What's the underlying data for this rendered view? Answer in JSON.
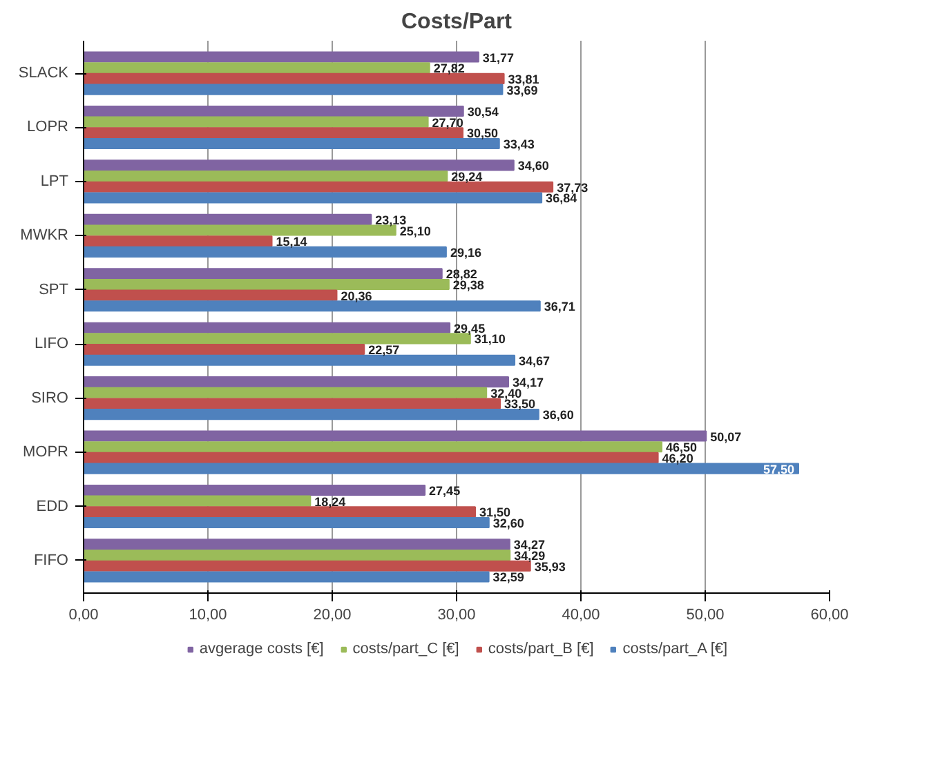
{
  "chart_data": {
    "type": "bar",
    "orientation": "horizontal",
    "title": "Costs/Part",
    "categories": [
      "SLACK",
      "LOPR",
      "LPT",
      "MWKR",
      "SPT",
      "LIFO",
      "SIRO",
      "MOPR",
      "EDD",
      "FIFO"
    ],
    "series": [
      {
        "name": "avgerage costs [€]",
        "color": "#8064a2",
        "values": [
          31.77,
          30.54,
          34.6,
          23.13,
          28.82,
          29.45,
          34.17,
          50.07,
          27.45,
          34.27
        ],
        "value_labels": [
          "31,77",
          "30,54",
          "34,60",
          "23,13",
          "28,82",
          "29,45",
          "34,17",
          "50,07",
          "27,45",
          "34,27"
        ]
      },
      {
        "name": "costs/part_C [€]",
        "color": "#9bbb59",
        "values": [
          27.82,
          27.7,
          29.24,
          25.1,
          29.38,
          31.1,
          32.4,
          46.5,
          18.24,
          34.29
        ],
        "value_labels": [
          "27,82",
          "27,70",
          "29,24",
          "25,10",
          "29,38",
          "31,10",
          "32,40",
          "46,50",
          "18,24",
          "34,29"
        ]
      },
      {
        "name": "costs/part_B [€]",
        "color": "#c0504d",
        "values": [
          33.81,
          30.5,
          37.73,
          15.14,
          20.36,
          22.57,
          33.5,
          46.2,
          31.5,
          35.93
        ],
        "value_labels": [
          "33,81",
          "30,50",
          "37,73",
          "15,14",
          "20,36",
          "22,57",
          "33,50",
          "46,20",
          "31,50",
          "35,93"
        ]
      },
      {
        "name": "costs/part_A [€]",
        "color": "#4f81bd",
        "values": [
          33.69,
          33.43,
          36.84,
          29.16,
          36.71,
          34.67,
          36.6,
          57.5,
          32.6,
          32.59
        ],
        "value_labels": [
          "33,69",
          "33,43",
          "36,84",
          "29,16",
          "36,71",
          "34,67",
          "36,60",
          "57,50",
          "32,60",
          "32,59"
        ]
      }
    ],
    "xlim": [
      0,
      60
    ],
    "xticks": [
      {
        "value": 0,
        "label": "0,00"
      },
      {
        "value": 10,
        "label": "10,00"
      },
      {
        "value": 20,
        "label": "20,00"
      },
      {
        "value": 30,
        "label": "30,00"
      },
      {
        "value": 40,
        "label": "40,00"
      },
      {
        "value": 50,
        "label": "50,00"
      },
      {
        "value": 60,
        "label": "60,00"
      }
    ],
    "grid": "x",
    "legend": "bottom"
  }
}
